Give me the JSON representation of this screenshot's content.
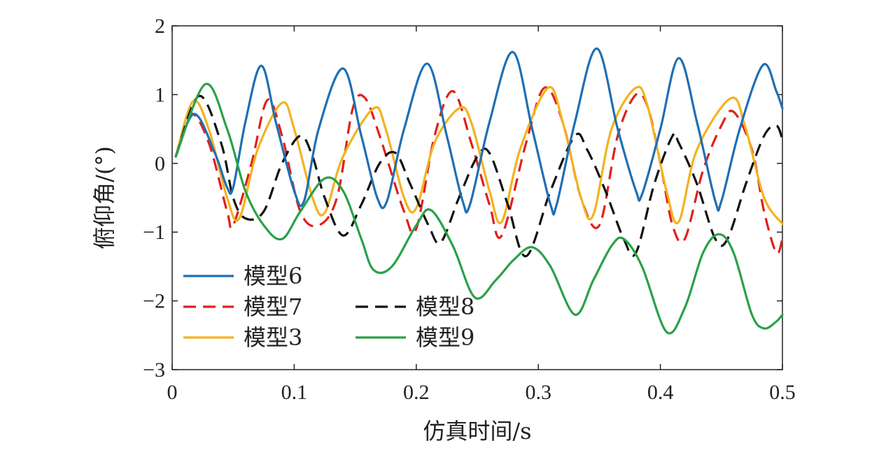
{
  "chart_data": {
    "type": "line",
    "xlabel": "仿真时间/s",
    "ylabel": "俯仰角/(°)",
    "xlim": [
      0,
      0.5
    ],
    "ylim": [
      -3,
      2
    ],
    "xticks": [
      0,
      0.1,
      0.2,
      0.3,
      0.4,
      0.5
    ],
    "xtick_labels": [
      "0",
      "0.1",
      "0.2",
      "0.3",
      "0.4",
      "0.5"
    ],
    "yticks": [
      -3,
      -2,
      -1,
      0,
      1,
      2
    ],
    "ytick_labels": [
      "−3",
      "−2",
      "−1",
      "0",
      "1",
      "2"
    ],
    "grid": false,
    "legend_position": "bottom-left",
    "legend_order": [
      "模型6",
      "模型7",
      "模型3",
      "模型8",
      "模型9"
    ],
    "series": [
      {
        "name": "模型6",
        "color": "#1f6fb4",
        "dash": "solid",
        "points": [
          [
            0.003,
            0.1
          ],
          [
            0.018,
            0.72
          ],
          [
            0.035,
            0.15
          ],
          [
            0.045,
            -0.35
          ],
          [
            0.05,
            -0.35
          ],
          [
            0.06,
            0.6
          ],
          [
            0.073,
            1.42
          ],
          [
            0.085,
            0.6
          ],
          [
            0.1,
            -0.4
          ],
          [
            0.108,
            -0.55
          ],
          [
            0.12,
            0.5
          ],
          [
            0.14,
            1.38
          ],
          [
            0.155,
            0.4
          ],
          [
            0.168,
            -0.5
          ],
          [
            0.176,
            -0.55
          ],
          [
            0.19,
            0.5
          ],
          [
            0.209,
            1.45
          ],
          [
            0.225,
            0.4
          ],
          [
            0.238,
            -0.55
          ],
          [
            0.244,
            -0.6
          ],
          [
            0.26,
            0.6
          ],
          [
            0.279,
            1.62
          ],
          [
            0.295,
            0.5
          ],
          [
            0.31,
            -0.6
          ],
          [
            0.315,
            -0.6
          ],
          [
            0.33,
            0.6
          ],
          [
            0.348,
            1.67
          ],
          [
            0.365,
            0.5
          ],
          [
            0.38,
            -0.4
          ],
          [
            0.385,
            -0.45
          ],
          [
            0.4,
            0.5
          ],
          [
            0.415,
            1.53
          ],
          [
            0.43,
            0.6
          ],
          [
            0.445,
            -0.55
          ],
          [
            0.45,
            -0.55
          ],
          [
            0.465,
            0.5
          ],
          [
            0.484,
            1.43
          ],
          [
            0.495,
            1.05
          ],
          [
            0.5,
            0.8
          ]
        ]
      },
      {
        "name": "模型7",
        "color": "#e0201b",
        "dash": "dashed",
        "points": [
          [
            0.003,
            0.1
          ],
          [
            0.015,
            0.72
          ],
          [
            0.03,
            0.3
          ],
          [
            0.045,
            -0.7
          ],
          [
            0.05,
            -0.9
          ],
          [
            0.065,
            0.0
          ],
          [
            0.078,
            0.92
          ],
          [
            0.09,
            0.4
          ],
          [
            0.105,
            -0.7
          ],
          [
            0.12,
            -0.9
          ],
          [
            0.135,
            -0.5
          ],
          [
            0.148,
            0.8
          ],
          [
            0.158,
            0.95
          ],
          [
            0.17,
            0.4
          ],
          [
            0.19,
            -0.7
          ],
          [
            0.2,
            -0.95
          ],
          [
            0.215,
            0.4
          ],
          [
            0.23,
            1.05
          ],
          [
            0.245,
            0.3
          ],
          [
            0.26,
            -0.6
          ],
          [
            0.27,
            -1.05
          ],
          [
            0.29,
            0.3
          ],
          [
            0.305,
            1.1
          ],
          [
            0.32,
            0.6
          ],
          [
            0.335,
            -0.5
          ],
          [
            0.35,
            -0.9
          ],
          [
            0.365,
            0.4
          ],
          [
            0.38,
            1.0
          ],
          [
            0.39,
            0.8
          ],
          [
            0.4,
            0.0
          ],
          [
            0.41,
            -0.9
          ],
          [
            0.42,
            -1.1
          ],
          [
            0.435,
            -0.1
          ],
          [
            0.45,
            0.55
          ],
          [
            0.46,
            0.75
          ],
          [
            0.475,
            0.2
          ],
          [
            0.485,
            -0.7
          ],
          [
            0.495,
            -1.3
          ],
          [
            0.5,
            -1.1
          ]
        ]
      },
      {
        "name": "模型3",
        "color": "#f3b21e",
        "dash": "solid",
        "points": [
          [
            0.003,
            0.1
          ],
          [
            0.017,
            0.9
          ],
          [
            0.03,
            0.5
          ],
          [
            0.045,
            -0.5
          ],
          [
            0.055,
            -0.8
          ],
          [
            0.07,
            0.2
          ],
          [
            0.09,
            0.88
          ],
          [
            0.1,
            0.5
          ],
          [
            0.115,
            -0.5
          ],
          [
            0.125,
            -0.72
          ],
          [
            0.14,
            0.1
          ],
          [
            0.165,
            0.8
          ],
          [
            0.175,
            0.5
          ],
          [
            0.19,
            -0.5
          ],
          [
            0.2,
            -0.65
          ],
          [
            0.215,
            0.3
          ],
          [
            0.235,
            0.8
          ],
          [
            0.245,
            0.6
          ],
          [
            0.26,
            -0.4
          ],
          [
            0.27,
            -0.85
          ],
          [
            0.285,
            0.2
          ],
          [
            0.308,
            1.1
          ],
          [
            0.32,
            0.6
          ],
          [
            0.335,
            -0.5
          ],
          [
            0.345,
            -0.75
          ],
          [
            0.36,
            0.5
          ],
          [
            0.38,
            1.1
          ],
          [
            0.39,
            0.8
          ],
          [
            0.405,
            -0.4
          ],
          [
            0.415,
            -0.85
          ],
          [
            0.43,
            0.2
          ],
          [
            0.458,
            0.95
          ],
          [
            0.47,
            0.5
          ],
          [
            0.485,
            -0.5
          ],
          [
            0.5,
            -0.88
          ]
        ]
      },
      {
        "name": "模型8",
        "color": "#111111",
        "dash": "dashed",
        "points": [
          [
            0.003,
            0.1
          ],
          [
            0.022,
            0.98
          ],
          [
            0.04,
            0.3
          ],
          [
            0.05,
            -0.5
          ],
          [
            0.06,
            -0.8
          ],
          [
            0.075,
            -0.7
          ],
          [
            0.09,
            0.0
          ],
          [
            0.105,
            0.4
          ],
          [
            0.115,
            0.1
          ],
          [
            0.125,
            -0.5
          ],
          [
            0.14,
            -1.05
          ],
          [
            0.155,
            -0.6
          ],
          [
            0.17,
            0.0
          ],
          [
            0.183,
            0.15
          ],
          [
            0.195,
            -0.3
          ],
          [
            0.21,
            -0.9
          ],
          [
            0.22,
            -1.15
          ],
          [
            0.235,
            -0.5
          ],
          [
            0.25,
            0.1
          ],
          [
            0.26,
            0.15
          ],
          [
            0.275,
            -0.6
          ],
          [
            0.29,
            -1.35
          ],
          [
            0.31,
            -0.4
          ],
          [
            0.33,
            0.4
          ],
          [
            0.34,
            0.2
          ],
          [
            0.355,
            -0.4
          ],
          [
            0.37,
            -1.1
          ],
          [
            0.38,
            -1.3
          ],
          [
            0.395,
            -0.3
          ],
          [
            0.41,
            0.4
          ],
          [
            0.415,
            0.3
          ],
          [
            0.43,
            -0.3
          ],
          [
            0.445,
            -1.1
          ],
          [
            0.455,
            -1.1
          ],
          [
            0.47,
            -0.3
          ],
          [
            0.485,
            0.4
          ],
          [
            0.495,
            0.55
          ],
          [
            0.5,
            0.35
          ]
        ]
      },
      {
        "name": "模型9",
        "color": "#2aa148",
        "dash": "solid",
        "points": [
          [
            0.003,
            0.1
          ],
          [
            0.027,
            1.15
          ],
          [
            0.045,
            0.5
          ],
          [
            0.06,
            -0.4
          ],
          [
            0.075,
            -0.9
          ],
          [
            0.09,
            -1.1
          ],
          [
            0.105,
            -0.7
          ],
          [
            0.125,
            -0.22
          ],
          [
            0.14,
            -0.4
          ],
          [
            0.155,
            -1.1
          ],
          [
            0.165,
            -1.55
          ],
          [
            0.18,
            -1.5
          ],
          [
            0.2,
            -0.9
          ],
          [
            0.212,
            -0.68
          ],
          [
            0.23,
            -1.2
          ],
          [
            0.248,
            -1.95
          ],
          [
            0.265,
            -1.7
          ],
          [
            0.28,
            -1.4
          ],
          [
            0.295,
            -1.22
          ],
          [
            0.31,
            -1.5
          ],
          [
            0.33,
            -2.2
          ],
          [
            0.345,
            -1.7
          ],
          [
            0.36,
            -1.2
          ],
          [
            0.37,
            -1.1
          ],
          [
            0.385,
            -1.5
          ],
          [
            0.405,
            -2.45
          ],
          [
            0.42,
            -2.1
          ],
          [
            0.435,
            -1.3
          ],
          [
            0.448,
            -1.03
          ],
          [
            0.46,
            -1.3
          ],
          [
            0.475,
            -2.2
          ],
          [
            0.485,
            -2.4
          ],
          [
            0.495,
            -2.3
          ],
          [
            0.5,
            -2.2
          ]
        ]
      }
    ]
  }
}
